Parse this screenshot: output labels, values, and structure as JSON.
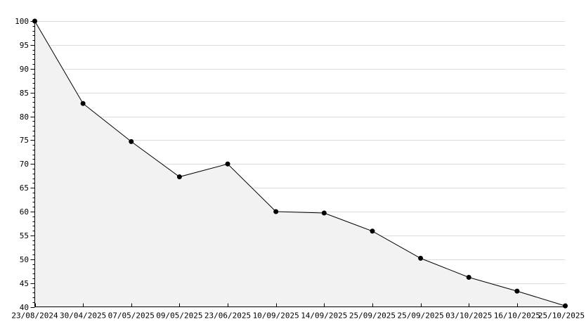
{
  "chart_data": {
    "type": "line",
    "title": "",
    "xlabel": "",
    "ylabel": "",
    "x_labels": [
      "23/08/2024",
      "30/04/2025",
      "07/05/2025",
      "09/05/2025",
      "23/06/2025",
      "10/09/2025",
      "14/09/2025",
      "25/09/2025",
      "25/09/2025",
      "03/10/2025",
      "16/10/2025",
      "25/10/2025"
    ],
    "series": [
      {
        "name": "value-index",
        "values": [
          100,
          82.7,
          74.7,
          67.3,
          70,
          60,
          59.7,
          55.9,
          50.2,
          46.2,
          43.3,
          40.2
        ]
      }
    ],
    "ylim": [
      40,
      100
    ],
    "y_tick_step": 5,
    "y_minor_tick_step": 1,
    "y_tick_labels": [
      "100",
      "95",
      "90",
      "85",
      "80",
      "75",
      "70",
      "65",
      "60",
      "55",
      "50",
      "45",
      "40"
    ],
    "grid": "horizontal-only",
    "legend_position": "none",
    "area_fill": true,
    "marker_style": "filled-circle",
    "colors": {
      "line": "#000000",
      "marker": "#000000",
      "area_fill": "#f2f2f2",
      "gridline": "#dcdcdc",
      "axis": "#000000",
      "text": "#000000",
      "background": "#ffffff"
    }
  }
}
